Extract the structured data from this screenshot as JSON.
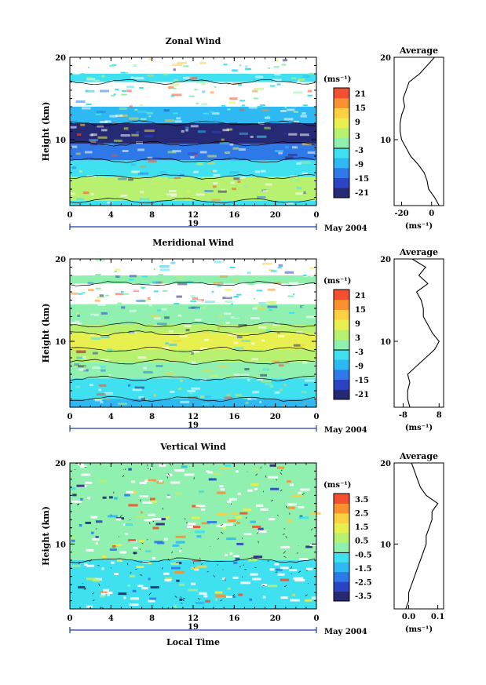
{
  "chart_data": [
    {
      "type": "heatmap",
      "title": "Zonal Wind",
      "ylabel": "Height (km)",
      "ylim": [
        2,
        20
      ],
      "xlim": [
        0,
        24
      ],
      "xticks": [
        "0",
        "4",
        "8",
        "12",
        "16",
        "20",
        "0"
      ],
      "yticks": [
        "20",
        "10"
      ],
      "date_day": "19",
      "date_label": "May 2004",
      "unit_label": "(ms⁻¹)",
      "colorbar_ticks": [
        "21",
        "15",
        "9",
        "3",
        "-3",
        "-9",
        "-15",
        "-21"
      ],
      "layers": [
        {
          "from_km": 2.0,
          "to_km": 2.6,
          "value": -4
        },
        {
          "from_km": 2.6,
          "to_km": 5.5,
          "value": 4
        },
        {
          "from_km": 5.5,
          "to_km": 7.5,
          "value": -4
        },
        {
          "from_km": 7.5,
          "to_km": 9.5,
          "value": -12
        },
        {
          "from_km": 9.5,
          "to_km": 12.0,
          "value": -20
        },
        {
          "from_km": 12.0,
          "to_km": 14.0,
          "value": -7
        },
        {
          "from_km": 17.0,
          "to_km": 18.0,
          "value": -3
        }
      ],
      "profile": {
        "title": "Average",
        "xlabel": "(ms⁻¹)",
        "xticks": [
          "-20",
          "0"
        ],
        "xlim": [
          -25,
          8
        ],
        "heights": [
          2,
          3,
          4,
          5,
          6,
          7,
          8,
          9,
          10,
          11,
          12,
          13,
          14,
          15,
          16,
          17,
          18,
          19,
          20
        ],
        "values": [
          5,
          2,
          -2,
          -3,
          -5,
          -9,
          -14,
          -17,
          -20,
          -21,
          -21,
          -20,
          -18,
          -19,
          -17,
          -15,
          -8,
          -3,
          2
        ]
      }
    },
    {
      "type": "heatmap",
      "title": "Meridional Wind",
      "ylabel": "Height (km)",
      "ylim": [
        2,
        20
      ],
      "xlim": [
        0,
        24
      ],
      "xticks": [
        "0",
        "4",
        "8",
        "12",
        "16",
        "20",
        "0"
      ],
      "yticks": [
        "20",
        "10"
      ],
      "date_day": "19",
      "date_label": "May 2004",
      "unit_label": "(ms⁻¹)",
      "colorbar_ticks": [
        "21",
        "15",
        "9",
        "3",
        "-3",
        "-9",
        "-15",
        "-21"
      ],
      "layers": [
        {
          "from_km": 2.0,
          "to_km": 3.0,
          "value": -8
        },
        {
          "from_km": 3.0,
          "to_km": 5.5,
          "value": -6
        },
        {
          "from_km": 5.5,
          "to_km": 7.5,
          "value": -1
        },
        {
          "from_km": 7.5,
          "to_km": 9.0,
          "value": 4
        },
        {
          "from_km": 9.0,
          "to_km": 11.0,
          "value": 9
        },
        {
          "from_km": 11.0,
          "to_km": 12.0,
          "value": 4
        },
        {
          "from_km": 12.0,
          "to_km": 14.5,
          "value": 1
        },
        {
          "from_km": 17.0,
          "to_km": 18.0,
          "value": -2
        }
      ],
      "profile": {
        "title": "Average",
        "xlabel": "(ms⁻¹)",
        "xticks": [
          "-8",
          "8"
        ],
        "xlim": [
          -12,
          10
        ],
        "heights": [
          2,
          3,
          4,
          5,
          6,
          7,
          8,
          9,
          10,
          11,
          12,
          13,
          14,
          15,
          16,
          17,
          18,
          19,
          20
        ],
        "values": [
          -5,
          -6,
          -6,
          -5,
          -6,
          -2,
          2,
          6,
          8,
          5,
          3,
          1,
          1,
          0,
          -2,
          3,
          -1,
          2,
          -4
        ]
      }
    },
    {
      "type": "heatmap",
      "title": "Vertical Wind",
      "ylabel": "Height (km)",
      "xlabel": "Local Time",
      "ylim": [
        2,
        20
      ],
      "xlim": [
        0,
        24
      ],
      "xticks": [
        "0",
        "4",
        "8",
        "12",
        "16",
        "20",
        "0"
      ],
      "yticks": [
        "20",
        "10"
      ],
      "date_day": "19",
      "date_label": "May 2004",
      "unit_label": "(ms⁻¹)",
      "colorbar_ticks": [
        "3.5",
        "2.5",
        "1.5",
        "0.5",
        "-0.5",
        "-1.5",
        "-2.5",
        "-3.5"
      ],
      "layers": [
        {
          "from_km": 2.0,
          "to_km": 8.0,
          "value": -0.4
        },
        {
          "from_km": 8.0,
          "to_km": 20.0,
          "value": 0.2
        }
      ],
      "profile": {
        "title": "Average",
        "xlabel": "(ms⁻¹)",
        "xticks": [
          "0.0",
          "0.1"
        ],
        "xlim": [
          -0.05,
          0.12
        ],
        "heights": [
          2,
          3,
          4,
          5,
          6,
          7,
          8,
          9,
          10,
          11,
          12,
          13,
          14,
          15,
          16,
          17,
          18,
          19,
          20
        ],
        "values": [
          -0.01,
          0.0,
          0.0,
          0.01,
          0.02,
          0.03,
          0.04,
          0.05,
          0.06,
          0.06,
          0.07,
          0.08,
          0.08,
          0.1,
          0.06,
          0.04,
          0.03,
          0.02,
          0.01
        ]
      }
    }
  ],
  "colorbar": {
    "colors": [
      "#262a75",
      "#2b44c2",
      "#2f78e8",
      "#2fb9f2",
      "#3fe0f0",
      "#8ff0b0",
      "#b8f070",
      "#e8f050",
      "#fcd040",
      "#fa9030",
      "#f25030"
    ]
  }
}
